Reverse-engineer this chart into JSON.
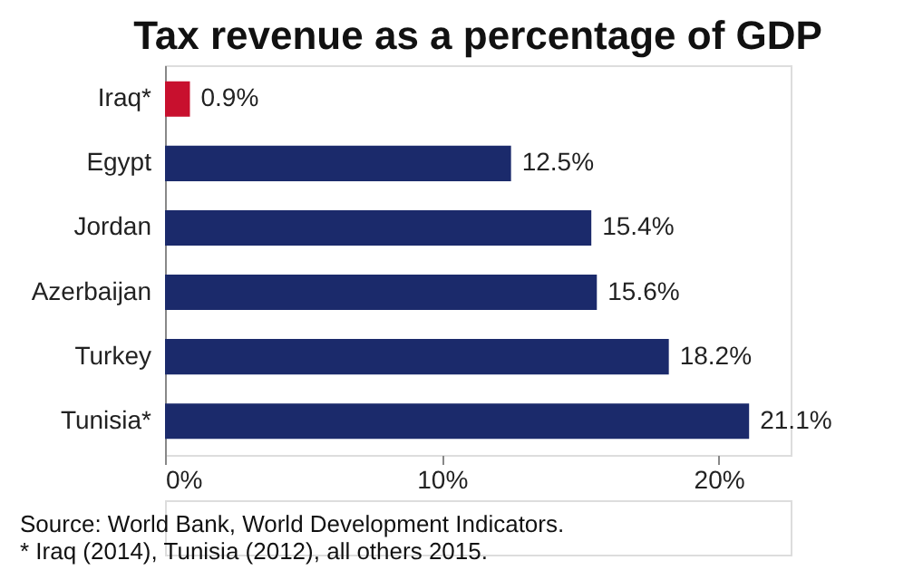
{
  "chart_data": {
    "type": "bar",
    "orientation": "horizontal",
    "title": "Tax revenue as a percentage of GDP",
    "categories": [
      "Iraq*",
      "Egypt",
      "Jordan",
      "Azerbaijan",
      "Turkey",
      "Tunisia*"
    ],
    "values": [
      0.9,
      12.5,
      15.4,
      15.6,
      18.2,
      21.1
    ],
    "colors": [
      "#c8102e",
      "#1b2a6b",
      "#1b2a6b",
      "#1b2a6b",
      "#1b2a6b",
      "#1b2a6b"
    ],
    "value_labels": [
      "0.9%",
      "12.5%",
      "15.4%",
      "15.6%",
      "18.2%",
      "21.1%"
    ],
    "xlim": [
      0,
      22.6
    ],
    "xticks": [
      {
        "value": 0,
        "label": "0%"
      },
      {
        "value": 10,
        "label": "10%"
      },
      {
        "value": 20,
        "label": "20%"
      }
    ],
    "grid": false,
    "annotations": [
      "Source: World Bank, World Development Indicators.",
      "* Iraq (2014), Tunisia (2012), all others 2015."
    ]
  }
}
